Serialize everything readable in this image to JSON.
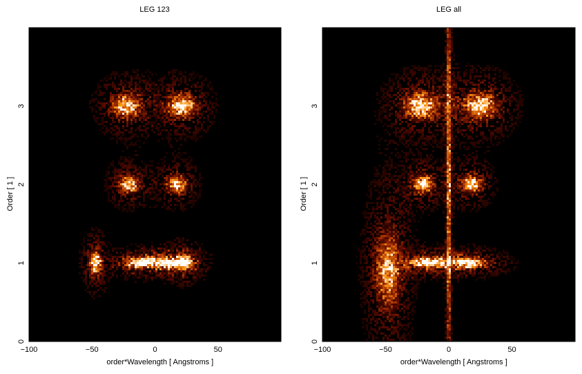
{
  "chart_data": [
    {
      "type": "heatmap",
      "title": "LEG 123",
      "xlabel": "order*Wavelength [ Angstroms ]",
      "ylabel": "Order [ 1 ]",
      "xlim": [
        -100,
        100
      ],
      "ylim": [
        0,
        4
      ],
      "xticks": [
        -100,
        -50,
        0,
        50
      ],
      "yticks": [
        0,
        1,
        2,
        3
      ],
      "colormap": [
        "#000000",
        "#5a0a00",
        "#b33a00",
        "#ff9a1a",
        "#ffffff"
      ],
      "grid": false,
      "features": [
        {
          "x": -22,
          "y": 3.0,
          "sx": 7,
          "sy": 0.09,
          "peak": 0.85
        },
        {
          "x": 22,
          "y": 3.0,
          "sx": 7,
          "sy": 0.09,
          "peak": 0.85
        },
        {
          "x": -20,
          "y": 2.0,
          "sx": 5,
          "sy": 0.07,
          "peak": 0.8
        },
        {
          "x": 18,
          "y": 2.0,
          "sx": 5,
          "sy": 0.07,
          "peak": 0.8
        },
        {
          "x": -10,
          "y": 1.0,
          "sx": 8,
          "sy": 0.04,
          "peak": 1.0
        },
        {
          "x": 10,
          "y": 1.0,
          "sx": 8,
          "sy": 0.04,
          "peak": 1.0
        },
        {
          "x": 24,
          "y": 1.0,
          "sx": 4,
          "sy": 0.06,
          "peak": 0.9
        },
        {
          "x": -47,
          "y": 1.0,
          "sx": 3,
          "sy": 0.09,
          "peak": 0.85
        }
      ]
    },
    {
      "type": "heatmap",
      "title": "LEG all",
      "xlabel": "order*Wavelength [ Angstroms ]",
      "ylabel": "Order [ 1 ]",
      "xlim": [
        -100,
        100
      ],
      "ylim": [
        0,
        4
      ],
      "xticks": [
        -100,
        -50,
        0,
        50
      ],
      "yticks": [
        0,
        1,
        2,
        3
      ],
      "colormap": [
        "#000000",
        "#5a0a00",
        "#b33a00",
        "#ff9a1a",
        "#ffffff"
      ],
      "grid": false,
      "features": [
        {
          "x": -22,
          "y": 3.0,
          "sx": 8,
          "sy": 0.1,
          "peak": 0.9
        },
        {
          "x": 25,
          "y": 3.0,
          "sx": 8,
          "sy": 0.1,
          "peak": 0.9
        },
        {
          "x": -20,
          "y": 2.0,
          "sx": 5,
          "sy": 0.07,
          "peak": 0.85
        },
        {
          "x": 18,
          "y": 2.0,
          "sx": 5,
          "sy": 0.07,
          "peak": 0.85
        },
        {
          "x": -15,
          "y": 1.0,
          "sx": 9,
          "sy": 0.04,
          "peak": 1.0
        },
        {
          "x": 15,
          "y": 1.0,
          "sx": 9,
          "sy": 0.04,
          "peak": 1.0
        },
        {
          "x": -48,
          "y": 0.9,
          "sx": 6,
          "sy": 0.3,
          "peak": 0.7
        },
        {
          "x": 0,
          "y": 2.0,
          "sx": 1,
          "sy": 2.0,
          "peak": 0.6
        }
      ]
    }
  ]
}
